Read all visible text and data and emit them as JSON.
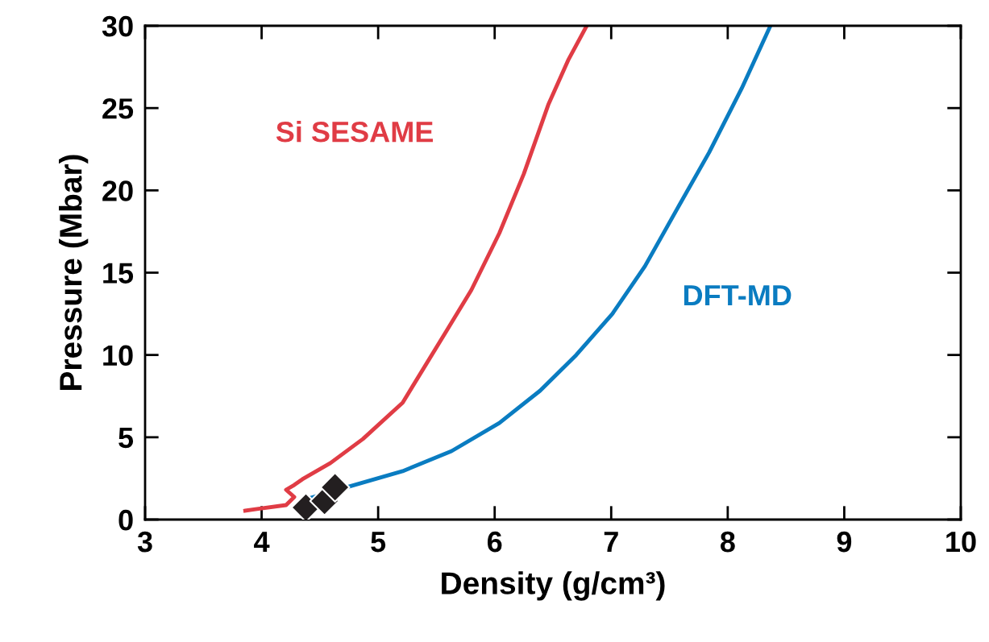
{
  "chart_data": {
    "type": "line",
    "xlabel": "Density (g/cm³)",
    "ylabel": "Pressure (Mbar)",
    "xlim": [
      3,
      10
    ],
    "ylim": [
      0,
      30
    ],
    "xticks": [
      3,
      4,
      5,
      6,
      7,
      8,
      9,
      10
    ],
    "yticks": [
      0,
      5,
      10,
      15,
      20,
      25,
      30
    ],
    "grid": false,
    "legend": false,
    "series": [
      {
        "name": "Si SESAME",
        "color": "#e03c45",
        "marker": "none",
        "x": [
          3.86,
          3.96,
          4.21,
          4.28,
          4.21,
          4.28,
          4.35,
          4.59,
          4.87,
          5.21,
          5.59,
          5.8,
          6.04,
          6.25,
          6.46,
          6.63,
          6.79
        ],
        "values": [
          0.54,
          0.64,
          0.88,
          1.37,
          1.81,
          2.1,
          2.45,
          3.43,
          4.9,
          7.1,
          11.5,
          13.95,
          17.4,
          21.0,
          25.2,
          27.9,
          30
        ]
      },
      {
        "name": "DFT-MD",
        "color": "#0a7cc1",
        "marker": "none",
        "x": [
          4.42,
          4.73,
          5.21,
          5.63,
          6.04,
          6.39,
          6.7,
          7.01,
          7.29,
          7.56,
          7.84,
          8.12,
          8.36
        ],
        "values": [
          1.32,
          1.96,
          2.94,
          4.16,
          5.87,
          7.83,
          10.0,
          12.5,
          15.4,
          18.8,
          22.3,
          26.2,
          29.9
        ]
      },
      {
        "type": "scatter",
        "color": "#231f20",
        "marker": "diamond",
        "x": [
          4.38,
          4.54,
          4.63
        ],
        "values": [
          0.73,
          1.13,
          1.96
        ]
      }
    ]
  }
}
